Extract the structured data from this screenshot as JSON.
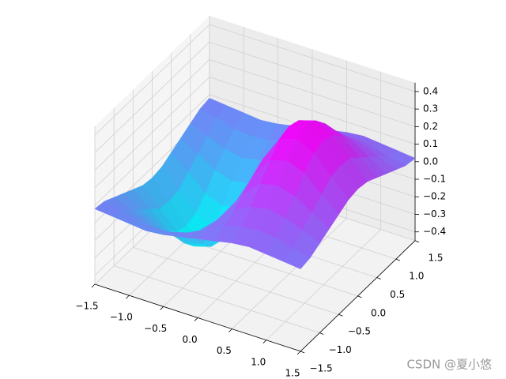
{
  "chart_data": {
    "type": "surface3d",
    "colormap": "cool",
    "x": [
      -1.5,
      -1.25,
      -1,
      -0.75,
      -0.5,
      -0.25,
      0,
      0.25,
      0.5,
      0.75,
      1,
      1.25,
      1.5
    ],
    "y": [
      -1.5,
      -1.25,
      -1,
      -0.75,
      -0.5,
      -0.25,
      0,
      0.25,
      0.5,
      0.75,
      1,
      1.25,
      1.5
    ],
    "z": [
      [
        -0.02,
        -0.03,
        -0.04,
        -0.05,
        -0.04,
        -0.02,
        0,
        0.02,
        0.04,
        0.05,
        0.04,
        0.03,
        0.02
      ],
      [
        -0.03,
        -0.05,
        -0.08,
        -0.09,
        -0.08,
        -0.05,
        0,
        0.05,
        0.08,
        0.09,
        0.08,
        0.05,
        0.03
      ],
      [
        -0.06,
        -0.1,
        -0.14,
        -0.16,
        -0.14,
        -0.09,
        0,
        0.09,
        0.14,
        0.16,
        0.14,
        0.1,
        0.06
      ],
      [
        -0.09,
        -0.15,
        -0.21,
        -0.24,
        -0.22,
        -0.13,
        0,
        0.13,
        0.22,
        0.24,
        0.21,
        0.15,
        0.09
      ],
      [
        -0.12,
        -0.2,
        -0.29,
        -0.33,
        -0.3,
        -0.18,
        0,
        0.18,
        0.3,
        0.33,
        0.29,
        0.2,
        0.12
      ],
      [
        -0.15,
        -0.25,
        -0.35,
        -0.4,
        -0.37,
        -0.22,
        0,
        0.22,
        0.37,
        0.4,
        0.35,
        0.25,
        0.15
      ],
      [
        -0.16,
        -0.26,
        -0.37,
        -0.43,
        -0.39,
        -0.23,
        0,
        0.23,
        0.39,
        0.43,
        0.37,
        0.26,
        0.16
      ],
      [
        -0.15,
        -0.25,
        -0.35,
        -0.4,
        -0.37,
        -0.22,
        0,
        0.22,
        0.37,
        0.4,
        0.35,
        0.25,
        0.15
      ],
      [
        -0.12,
        -0.2,
        -0.29,
        -0.33,
        -0.3,
        -0.18,
        0,
        0.18,
        0.3,
        0.33,
        0.29,
        0.2,
        0.12
      ],
      [
        -0.09,
        -0.15,
        -0.21,
        -0.24,
        -0.22,
        -0.13,
        0,
        0.13,
        0.22,
        0.24,
        0.21,
        0.15,
        0.09
      ],
      [
        -0.06,
        -0.1,
        -0.14,
        -0.16,
        -0.14,
        -0.09,
        0,
        0.09,
        0.14,
        0.16,
        0.14,
        0.1,
        0.06
      ],
      [
        -0.03,
        -0.05,
        -0.08,
        -0.09,
        -0.08,
        -0.05,
        0,
        0.05,
        0.08,
        0.09,
        0.08,
        0.05,
        0.03
      ],
      [
        -0.02,
        -0.03,
        -0.04,
        -0.05,
        -0.04,
        -0.02,
        0,
        0.02,
        0.04,
        0.05,
        0.04,
        0.03,
        0.02
      ]
    ],
    "xlim": [
      -1.5,
      1.5
    ],
    "ylim": [
      -1.5,
      1.5
    ],
    "zlim": [
      -0.45,
      0.45
    ],
    "xticks": [
      {
        "value": -1.5,
        "label": "−1.5"
      },
      {
        "value": -1,
        "label": "−1.0"
      },
      {
        "value": -0.5,
        "label": "−0.5"
      },
      {
        "value": 0,
        "label": "0.0"
      },
      0.5,
      {
        "value": 1,
        "label": "1.0"
      },
      1.5
    ],
    "yticks": [
      {
        "value": -1.5,
        "label": "−1.5"
      },
      {
        "value": -1,
        "label": "−1.0"
      },
      {
        "value": -0.5,
        "label": "−0.5"
      },
      {
        "value": 0,
        "label": "0.0"
      },
      0.5,
      {
        "value": 1,
        "label": "1.0"
      },
      1.5
    ],
    "zticks": [
      {
        "value": -0.4,
        "label": "−0.4"
      },
      {
        "value": -0.3,
        "label": "−0.3"
      },
      {
        "value": -0.2,
        "label": "−0.2"
      },
      {
        "value": -0.1,
        "label": "−0.1"
      },
      {
        "value": 0,
        "label": "0.0"
      },
      0.1,
      0.2,
      0.3,
      0.4
    ],
    "grid": true
  },
  "watermark": "CSDN @夏小悠"
}
